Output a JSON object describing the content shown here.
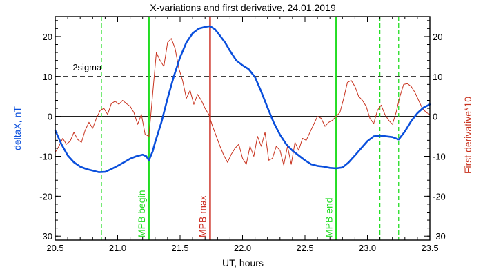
{
  "chart_data": {
    "type": "line",
    "title": "X-variations and first derivative, 24.01.2019",
    "xlabel": "UT, hours",
    "ylabel_left": "deltaX, nT",
    "ylabel_right": "First derivative*10",
    "xlim": [
      20.5,
      23.5
    ],
    "ylim": [
      -31,
      25
    ],
    "x_ticks": [
      20.5,
      21.0,
      21.5,
      22.0,
      22.5,
      23.0,
      23.5
    ],
    "x_tick_labels": [
      "20.5",
      "21.0",
      "21.5",
      "22.0",
      "22.5",
      "23.0",
      "23.5"
    ],
    "y_ticks": [
      -30,
      -20,
      -10,
      0,
      10,
      20
    ],
    "y_tick_labels": [
      "-30",
      "-20",
      "-10",
      "0",
      "10",
      "20"
    ],
    "colors": {
      "deltaX": "#0a4fdc",
      "derivative": "#c8321e",
      "mpb_line": "#22dd22",
      "mpb_max_line": "#cc2a1e",
      "right_axis_title": "#c8321e",
      "left_axis_title": "#0a4fdc"
    },
    "threshold": {
      "value": 10,
      "label": "2sigma"
    },
    "zero_line": 0,
    "vertical_markers": [
      {
        "x": 20.87,
        "style": "dashed",
        "color": "#22dd22",
        "label": ""
      },
      {
        "x": 21.25,
        "style": "solid",
        "color": "#22dd22",
        "label": "MPB begin"
      },
      {
        "x": 21.74,
        "style": "solid",
        "color": "#cc2a1e",
        "label": "MPB max"
      },
      {
        "x": 22.75,
        "style": "solid",
        "color": "#22dd22",
        "label": "MPB end"
      },
      {
        "x": 23.1,
        "style": "dashed",
        "color": "#22dd22",
        "label": ""
      },
      {
        "x": 23.25,
        "style": "dashed",
        "color": "#22dd22",
        "label": ""
      }
    ],
    "series": [
      {
        "name": "deltaX, nT",
        "x": [
          20.5,
          20.55,
          20.6,
          20.65,
          20.7,
          20.75,
          20.8,
          20.85,
          20.9,
          20.95,
          21.0,
          21.05,
          21.1,
          21.15,
          21.2,
          21.23,
          21.25,
          21.28,
          21.3,
          21.35,
          21.4,
          21.45,
          21.5,
          21.55,
          21.6,
          21.65,
          21.7,
          21.74,
          21.78,
          21.82,
          21.86,
          21.9,
          21.95,
          22.0,
          22.05,
          22.1,
          22.15,
          22.2,
          22.25,
          22.3,
          22.35,
          22.4,
          22.45,
          22.5,
          22.55,
          22.6,
          22.65,
          22.7,
          22.75,
          22.8,
          22.85,
          22.9,
          22.95,
          23.0,
          23.05,
          23.1,
          23.15,
          23.2,
          23.25,
          23.3,
          23.35,
          23.4,
          23.45,
          23.5
        ],
        "y": [
          -3.5,
          -7.0,
          -9.8,
          -11.5,
          -12.6,
          -13.2,
          -13.6,
          -14.0,
          -13.9,
          -13.2,
          -12.4,
          -11.5,
          -10.6,
          -10.0,
          -9.6,
          -10.0,
          -11.0,
          -8.8,
          -6.5,
          -1.5,
          4.5,
          10.0,
          14.8,
          18.5,
          20.8,
          22.0,
          22.4,
          22.6,
          21.8,
          20.2,
          18.5,
          16.4,
          14.0,
          12.8,
          11.8,
          9.8,
          6.2,
          2.2,
          -1.6,
          -4.6,
          -7.0,
          -8.6,
          -9.8,
          -11.0,
          -12.0,
          -12.4,
          -12.6,
          -12.9,
          -13.0,
          -12.8,
          -11.5,
          -9.8,
          -8.0,
          -6.2,
          -5.0,
          -4.8,
          -5.0,
          -5.2,
          -5.8,
          -3.8,
          -1.2,
          0.8,
          2.2,
          3.0
        ]
      },
      {
        "name": "First derivative*10",
        "x": [
          20.5,
          20.53,
          20.56,
          20.59,
          20.62,
          20.65,
          20.68,
          20.71,
          20.74,
          20.77,
          20.8,
          20.83,
          20.86,
          20.89,
          20.92,
          20.95,
          20.98,
          21.01,
          21.04,
          21.07,
          21.1,
          21.13,
          21.16,
          21.19,
          21.22,
          21.25,
          21.28,
          21.31,
          21.34,
          21.37,
          21.4,
          21.43,
          21.46,
          21.49,
          21.52,
          21.55,
          21.58,
          21.61,
          21.64,
          21.67,
          21.7,
          21.73,
          21.76,
          21.79,
          21.82,
          21.85,
          21.88,
          21.91,
          21.94,
          21.97,
          22.0,
          22.03,
          22.06,
          22.09,
          22.12,
          22.15,
          22.18,
          22.21,
          22.24,
          22.27,
          22.3,
          22.33,
          22.36,
          22.39,
          22.42,
          22.45,
          22.48,
          22.51,
          22.54,
          22.57,
          22.6,
          22.63,
          22.66,
          22.69,
          22.72,
          22.75,
          22.78,
          22.81,
          22.84,
          22.87,
          22.9,
          22.93,
          22.96,
          22.99,
          23.02,
          23.05,
          23.08,
          23.11,
          23.14,
          23.17,
          23.2,
          23.23,
          23.26,
          23.29,
          23.32,
          23.35,
          23.38,
          23.41,
          23.44,
          23.47,
          23.5
        ],
        "y": [
          -9.0,
          -7.5,
          -5.5,
          -7.0,
          -6.2,
          -4.0,
          -5.8,
          -6.5,
          -3.5,
          -1.5,
          -3.0,
          -0.5,
          1.5,
          2.0,
          0.5,
          3.2,
          3.8,
          3.0,
          4.0,
          3.2,
          2.5,
          1.0,
          -2.0,
          0.5,
          -4.5,
          -5.0,
          5.5,
          16.0,
          14.0,
          12.5,
          18.5,
          19.5,
          17.0,
          12.0,
          9.0,
          4.5,
          6.5,
          3.0,
          5.5,
          4.0,
          2.0,
          0.5,
          -2.5,
          -5.0,
          -7.5,
          -9.8,
          -11.5,
          -9.5,
          -8.0,
          -7.0,
          -10.5,
          -12.0,
          -7.5,
          -10.0,
          -5.0,
          -7.5,
          -4.0,
          -11.0,
          -10.5,
          -7.5,
          -8.5,
          -12.2,
          -7.5,
          -12.0,
          -6.5,
          -8.5,
          -5.5,
          -6.0,
          -4.0,
          -2.0,
          0.0,
          -0.5,
          -2.5,
          -1.5,
          -1.0,
          0.0,
          1.0,
          4.5,
          8.5,
          9.0,
          7.5,
          5.0,
          4.0,
          2.5,
          -0.5,
          -1.8,
          1.5,
          2.8,
          0.5,
          -1.0,
          -2.0,
          1.0,
          5.0,
          8.0,
          8.2,
          7.5,
          6.0,
          4.0,
          2.0,
          1.0,
          0.5
        ]
      }
    ]
  }
}
